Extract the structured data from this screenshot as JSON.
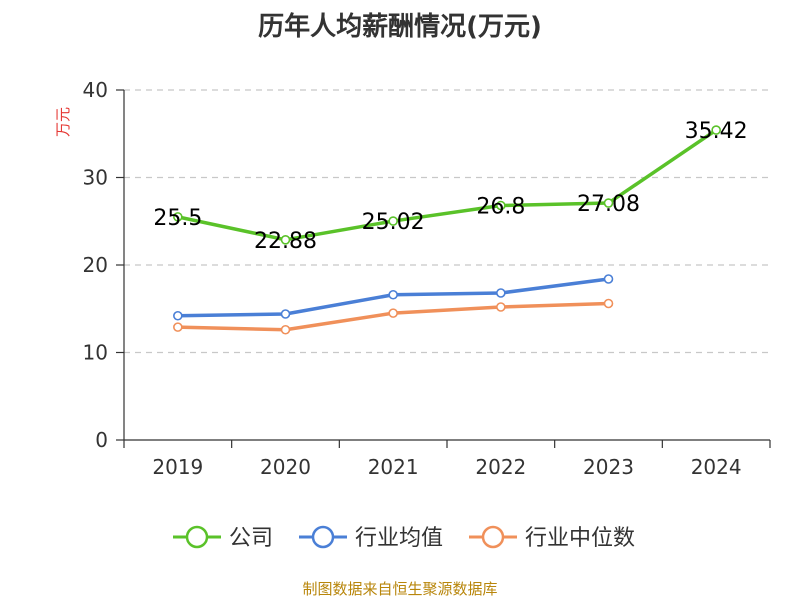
{
  "chart_data": {
    "type": "line",
    "title": "历年人均薪酬情况(万元)",
    "ylabel": "万元",
    "xlabel": "",
    "categories": [
      "2019",
      "2020",
      "2021",
      "2022",
      "2023",
      "2024"
    ],
    "ylim": [
      0,
      40
    ],
    "yticks": [
      0,
      10,
      20,
      30,
      40
    ],
    "grid": true,
    "legend_position": "bottom",
    "series": [
      {
        "name": "公司",
        "color": "#5ac229",
        "values": [
          25.5,
          22.88,
          25.02,
          26.8,
          27.08,
          35.42
        ],
        "labels": [
          "25.5",
          "22.88",
          "25.02",
          "26.8",
          "27.08",
          "35.42"
        ],
        "show_labels": true
      },
      {
        "name": "行业均值",
        "color": "#4a7fd6",
        "values": [
          14.2,
          14.4,
          16.6,
          16.8,
          18.4,
          null
        ],
        "show_labels": false
      },
      {
        "name": "行业中位数",
        "color": "#f0905a",
        "values": [
          12.9,
          12.6,
          14.5,
          15.2,
          15.6,
          null
        ],
        "show_labels": false
      }
    ]
  },
  "source_note": "制图数据来自恒生聚源数据库"
}
